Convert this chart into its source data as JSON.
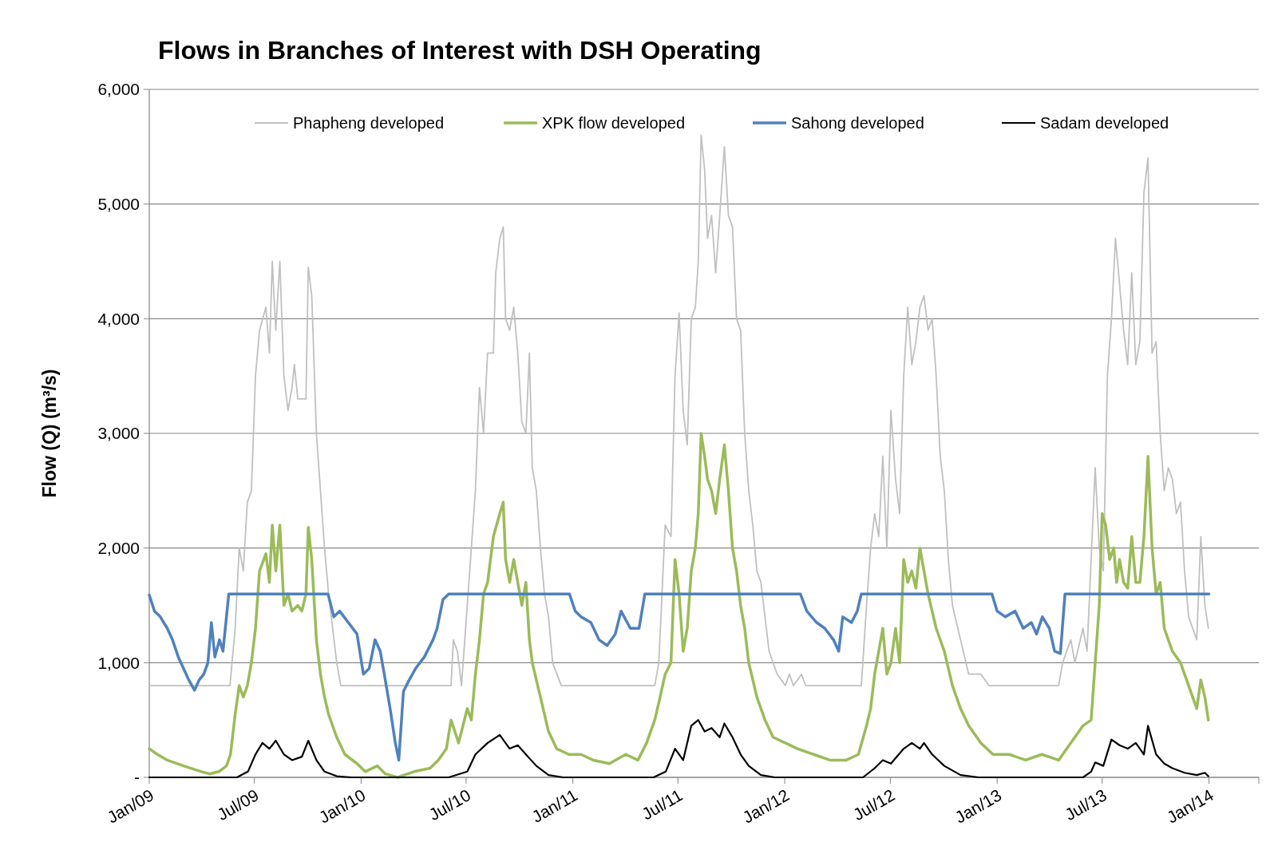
{
  "chart_data": {
    "type": "line",
    "title": "Flows in Branches of Interest with DSH Operating",
    "ylabel": "Flow (Q) (m³/s)",
    "xlim": [
      "2009-01-01",
      "2014-03-28"
    ],
    "xticks": [
      {
        "value": "2009-01-01",
        "label": "Jan/09"
      },
      {
        "value": "2009-07-01",
        "label": "Jul/09"
      },
      {
        "value": "2010-01-01",
        "label": "Jan/10"
      },
      {
        "value": "2010-07-01",
        "label": "Jul/10"
      },
      {
        "value": "2011-01-01",
        "label": "Jan/11"
      },
      {
        "value": "2011-07-01",
        "label": "Jul/11"
      },
      {
        "value": "2012-01-01",
        "label": "Jan/12"
      },
      {
        "value": "2012-07-01",
        "label": "Jul/12"
      },
      {
        "value": "2013-01-01",
        "label": "Jan/13"
      },
      {
        "value": "2013-07-01",
        "label": "Jul/13"
      },
      {
        "value": "2014-01-01",
        "label": "Jan/14"
      }
    ],
    "ylim": [
      0,
      6000
    ],
    "yticks": [
      {
        "value": 0,
        "label": "-"
      },
      {
        "value": 1000,
        "label": "1,000"
      },
      {
        "value": 2000,
        "label": "2,000"
      },
      {
        "value": 3000,
        "label": "3,000"
      },
      {
        "value": 4000,
        "label": "4,000"
      },
      {
        "value": 5000,
        "label": "5,000"
      },
      {
        "value": 6000,
        "label": "6,000"
      }
    ],
    "grid": "y",
    "legend": "top",
    "marker": "none",
    "line_style": "solid",
    "series": [
      {
        "name": "Phapheng developed",
        "color": "#c0c0c0",
        "x": [
          "2009-01-01",
          "2009-05-20",
          "2009-05-29",
          "2009-06-05",
          "2009-06-12",
          "2009-06-19",
          "2009-06-26",
          "2009-07-03",
          "2009-07-10",
          "2009-07-21",
          "2009-07-27",
          "2009-08-01",
          "2009-08-07",
          "2009-08-14",
          "2009-08-21",
          "2009-08-28",
          "2009-09-04",
          "2009-09-08",
          "2009-09-14",
          "2009-09-21",
          "2009-09-28",
          "2009-10-02",
          "2009-10-08",
          "2009-10-16",
          "2009-10-23",
          "2009-10-30",
          "2009-11-06",
          "2009-11-20",
          "2009-11-27",
          "2010-06-05",
          "2010-06-09",
          "2010-06-16",
          "2010-06-23",
          "2010-07-03",
          "2010-07-17",
          "2010-07-24",
          "2010-07-31",
          "2010-08-07",
          "2010-08-17",
          "2010-08-21",
          "2010-08-28",
          "2010-09-03",
          "2010-09-07",
          "2010-09-14",
          "2010-09-21",
          "2010-09-28",
          "2010-10-05",
          "2010-10-12",
          "2010-10-18",
          "2010-10-23",
          "2010-10-30",
          "2010-11-06",
          "2010-11-13",
          "2010-11-20",
          "2010-11-27",
          "2010-12-12",
          "2011-05-22",
          "2011-05-29",
          "2011-06-09",
          "2011-06-19",
          "2011-06-26",
          "2011-07-03",
          "2011-07-10",
          "2011-07-17",
          "2011-07-24",
          "2011-07-31",
          "2011-08-05",
          "2011-08-10",
          "2011-08-16",
          "2011-08-21",
          "2011-08-28",
          "2011-09-04",
          "2011-09-11",
          "2011-09-19",
          "2011-09-26",
          "2011-10-03",
          "2011-10-10",
          "2011-10-17",
          "2011-10-24",
          "2011-10-31",
          "2011-11-07",
          "2011-11-14",
          "2011-11-21",
          "2011-12-05",
          "2011-12-19",
          "2012-01-02",
          "2012-01-09",
          "2012-01-16",
          "2012-01-30",
          "2012-02-06",
          "2012-05-12",
          "2012-05-21",
          "2012-05-28",
          "2012-06-04",
          "2012-06-11",
          "2012-06-18",
          "2012-06-25",
          "2012-07-02",
          "2012-07-10",
          "2012-07-17",
          "2012-07-24",
          "2012-07-31",
          "2012-08-07",
          "2012-08-14",
          "2012-08-21",
          "2012-08-28",
          "2012-09-04",
          "2012-09-11",
          "2012-09-18",
          "2012-09-25",
          "2012-10-02",
          "2012-10-09",
          "2012-10-16",
          "2012-10-30",
          "2012-11-13",
          "2012-12-04",
          "2012-12-18",
          "2013-04-17",
          "2013-04-24",
          "2013-05-08",
          "2013-05-15",
          "2013-05-29",
          "2013-06-05",
          "2013-06-19",
          "2013-06-26",
          "2013-07-03",
          "2013-07-10",
          "2013-07-17",
          "2013-07-24",
          "2013-07-31",
          "2013-08-07",
          "2013-08-14",
          "2013-08-21",
          "2013-08-28",
          "2013-09-04",
          "2013-09-11",
          "2013-09-18",
          "2013-09-25",
          "2013-10-02",
          "2013-10-09",
          "2013-10-16",
          "2013-10-23",
          "2013-10-30",
          "2013-11-06",
          "2013-11-13",
          "2013-11-20",
          "2013-11-27",
          "2013-12-04",
          "2013-12-11",
          "2013-12-18",
          "2013-12-25",
          "2013-12-31"
        ],
        "values": [
          800,
          800,
          1300,
          2000,
          1800,
          2400,
          2500,
          3500,
          3900,
          4100,
          3700,
          4500,
          3900,
          4500,
          3500,
          3200,
          3400,
          3600,
          3300,
          3300,
          3300,
          4450,
          4200,
          3000,
          2500,
          2000,
          1600,
          1000,
          800,
          800,
          1200,
          1100,
          800,
          1500,
          2500,
          3400,
          3000,
          3700,
          3700,
          4400,
          4700,
          4800,
          4000,
          3900,
          4100,
          3700,
          3100,
          3000,
          3700,
          2700,
          2500,
          2000,
          1600,
          1400,
          1000,
          800,
          800,
          1000,
          2200,
          2100,
          3500,
          4050,
          3200,
          2900,
          4000,
          4100,
          4500,
          5600,
          5300,
          4700,
          4900,
          4400,
          4900,
          5500,
          4900,
          4800,
          4000,
          3900,
          3000,
          2500,
          2200,
          1800,
          1700,
          1100,
          900,
          800,
          900,
          800,
          900,
          800,
          800,
          1500,
          2000,
          2300,
          2100,
          2800,
          2000,
          3200,
          2600,
          2300,
          3500,
          4100,
          3600,
          3800,
          4100,
          4200,
          3900,
          4000,
          3500,
          2800,
          2500,
          1900,
          1500,
          1200,
          900,
          900,
          800,
          800,
          1000,
          1200,
          1000,
          1300,
          1100,
          2700,
          2000,
          1800,
          3500,
          4000,
          4700,
          4300,
          3900,
          3600,
          4400,
          3600,
          3800,
          5100,
          5400,
          3700,
          3800,
          3000,
          2500,
          2700,
          2600,
          2300,
          2400,
          1800,
          1400,
          1300,
          1200,
          2100,
          1500,
          1300
        ]
      },
      {
        "name": "XPK flow developed",
        "color": "#9bbb59",
        "x": [
          "2009-01-01",
          "2009-01-15",
          "2009-02-01",
          "2009-03-01",
          "2009-04-01",
          "2009-04-15",
          "2009-05-01",
          "2009-05-14",
          "2009-05-21",
          "2009-05-29",
          "2009-06-05",
          "2009-06-12",
          "2009-06-19",
          "2009-06-26",
          "2009-07-03",
          "2009-07-10",
          "2009-07-21",
          "2009-07-27",
          "2009-08-01",
          "2009-08-07",
          "2009-08-14",
          "2009-08-21",
          "2009-08-28",
          "2009-09-04",
          "2009-09-14",
          "2009-09-21",
          "2009-09-28",
          "2009-10-02",
          "2009-10-08",
          "2009-10-16",
          "2009-10-23",
          "2009-10-30",
          "2009-11-06",
          "2009-11-20",
          "2009-12-04",
          "2009-12-25",
          "2010-01-08",
          "2010-01-29",
          "2010-02-12",
          "2010-03-05",
          "2010-04-02",
          "2010-04-30",
          "2010-05-14",
          "2010-05-28",
          "2010-06-05",
          "2010-06-18",
          "2010-07-03",
          "2010-07-10",
          "2010-07-17",
          "2010-07-24",
          "2010-07-31",
          "2010-08-07",
          "2010-08-17",
          "2010-08-28",
          "2010-09-03",
          "2010-09-07",
          "2010-09-14",
          "2010-09-21",
          "2010-09-28",
          "2010-10-05",
          "2010-10-12",
          "2010-10-18",
          "2010-10-23",
          "2010-11-06",
          "2010-11-20",
          "2010-12-04",
          "2010-12-25",
          "2011-01-15",
          "2011-02-05",
          "2011-03-05",
          "2011-04-02",
          "2011-04-23",
          "2011-05-08",
          "2011-05-22",
          "2011-05-29",
          "2011-06-09",
          "2011-06-19",
          "2011-06-26",
          "2011-07-03",
          "2011-07-10",
          "2011-07-17",
          "2011-07-24",
          "2011-07-31",
          "2011-08-05",
          "2011-08-10",
          "2011-08-16",
          "2011-08-21",
          "2011-08-28",
          "2011-09-04",
          "2011-09-11",
          "2011-09-19",
          "2011-09-26",
          "2011-10-03",
          "2011-10-10",
          "2011-10-17",
          "2011-10-24",
          "2011-10-31",
          "2011-11-14",
          "2011-11-28",
          "2011-12-12",
          "2012-01-02",
          "2012-01-23",
          "2012-02-20",
          "2012-03-19",
          "2012-04-16",
          "2012-05-07",
          "2012-05-21",
          "2012-05-28",
          "2012-06-04",
          "2012-06-11",
          "2012-06-18",
          "2012-06-25",
          "2012-07-02",
          "2012-07-10",
          "2012-07-17",
          "2012-07-24",
          "2012-07-31",
          "2012-08-07",
          "2012-08-14",
          "2012-08-21",
          "2012-08-28",
          "2012-09-04",
          "2012-09-18",
          "2012-10-02",
          "2012-10-16",
          "2012-10-30",
          "2012-11-13",
          "2012-12-04",
          "2012-12-25",
          "2013-01-22",
          "2013-02-19",
          "2013-03-19",
          "2013-04-17",
          "2013-05-01",
          "2013-05-15",
          "2013-05-29",
          "2013-06-12",
          "2013-06-19",
          "2013-06-26",
          "2013-07-01",
          "2013-07-07",
          "2013-07-14",
          "2013-07-21",
          "2013-07-26",
          "2013-07-31",
          "2013-08-07",
          "2013-08-14",
          "2013-08-21",
          "2013-08-28",
          "2013-09-04",
          "2013-09-11",
          "2013-09-18",
          "2013-09-25",
          "2013-10-02",
          "2013-10-09",
          "2013-10-16",
          "2013-10-23",
          "2013-10-30",
          "2013-11-13",
          "2013-11-27",
          "2013-12-11",
          "2013-12-18",
          "2013-12-25",
          "2013-12-31"
        ],
        "values": [
          250,
          200,
          150,
          100,
          50,
          30,
          50,
          100,
          200,
          550,
          800,
          700,
          800,
          1000,
          1300,
          1800,
          1950,
          1700,
          2200,
          1800,
          2200,
          1500,
          1600,
          1450,
          1500,
          1450,
          1600,
          2180,
          1900,
          1200,
          900,
          700,
          550,
          350,
          200,
          120,
          50,
          100,
          30,
          0,
          50,
          80,
          150,
          250,
          500,
          300,
          600,
          500,
          900,
          1200,
          1600,
          1700,
          2100,
          2300,
          2400,
          1900,
          1700,
          1900,
          1700,
          1500,
          1700,
          1200,
          1000,
          700,
          400,
          250,
          200,
          200,
          150,
          120,
          200,
          150,
          300,
          500,
          650,
          900,
          1000,
          1900,
          1600,
          1100,
          1300,
          1800,
          2000,
          2300,
          3000,
          2800,
          2600,
          2500,
          2300,
          2600,
          2900,
          2500,
          2000,
          1800,
          1500,
          1300,
          1000,
          700,
          500,
          350,
          300,
          250,
          200,
          150,
          150,
          200,
          450,
          600,
          900,
          1100,
          1300,
          900,
          1000,
          1300,
          1000,
          1900,
          1700,
          1800,
          1650,
          2000,
          1800,
          1600,
          1300,
          1100,
          800,
          600,
          450,
          300,
          200,
          200,
          150,
          200,
          150,
          250,
          350,
          450,
          500,
          1000,
          1500,
          2300,
          2200,
          1900,
          2000,
          1700,
          1900,
          1700,
          1650,
          2100,
          1700,
          1700,
          2100,
          2800,
          2000,
          1600,
          1700,
          1300,
          1200,
          1100,
          1000,
          800,
          600,
          850,
          700,
          500
        ]
      },
      {
        "name": "Sahong developed",
        "color": "#4f81bd",
        "x": [
          "2009-01-01",
          "2009-01-10",
          "2009-01-20",
          "2009-02-01",
          "2009-02-10",
          "2009-02-20",
          "2009-03-01",
          "2009-03-10",
          "2009-03-20",
          "2009-03-28",
          "2009-04-05",
          "2009-04-12",
          "2009-04-18",
          "2009-04-24",
          "2009-05-02",
          "2009-05-08",
          "2009-05-18",
          "2009-11-05",
          "2009-11-15",
          "2009-11-25",
          "2009-12-10",
          "2009-12-25",
          "2010-01-05",
          "2010-01-15",
          "2010-01-25",
          "2010-02-03",
          "2010-02-10",
          "2010-02-20",
          "2010-03-01",
          "2010-03-07",
          "2010-03-15",
          "2010-03-25",
          "2010-04-05",
          "2010-04-20",
          "2010-05-05",
          "2010-05-12",
          "2010-05-22",
          "2010-06-01",
          "2010-12-26",
          "2011-01-05",
          "2011-01-15",
          "2011-02-01",
          "2011-02-15",
          "2011-03-01",
          "2011-03-15",
          "2011-03-25",
          "2011-04-10",
          "2011-04-25",
          "2011-05-05",
          "2012-01-28",
          "2012-02-08",
          "2012-02-25",
          "2012-03-10",
          "2012-03-25",
          "2012-04-03",
          "2012-04-10",
          "2012-04-25",
          "2012-05-05",
          "2012-05-12",
          "2012-12-23",
          "2013-01-01",
          "2013-01-15",
          "2013-02-01",
          "2013-02-15",
          "2013-03-01",
          "2013-03-10",
          "2013-03-20",
          "2013-04-01",
          "2013-04-10",
          "2013-04-20",
          "2013-04-28",
          "2014-01-01"
        ],
        "values": [
          1590,
          1450,
          1400,
          1300,
          1200,
          1050,
          950,
          850,
          760,
          850,
          900,
          1000,
          1350,
          1050,
          1200,
          1100,
          1600,
          1600,
          1400,
          1450,
          1350,
          1250,
          900,
          950,
          1200,
          1100,
          900,
          600,
          300,
          150,
          750,
          850,
          950,
          1050,
          1200,
          1300,
          1550,
          1600,
          1600,
          1450,
          1400,
          1350,
          1200,
          1150,
          1250,
          1450,
          1300,
          1300,
          1600,
          1600,
          1450,
          1350,
          1300,
          1200,
          1100,
          1400,
          1350,
          1450,
          1600,
          1600,
          1450,
          1400,
          1450,
          1300,
          1350,
          1250,
          1400,
          1300,
          1100,
          1080,
          1600,
          1600
        ]
      },
      {
        "name": "Sadam developed",
        "color": "#000000",
        "x": [
          "2009-01-01",
          "2009-06-01",
          "2009-06-20",
          "2009-07-03",
          "2009-07-15",
          "2009-07-27",
          "2009-08-07",
          "2009-08-21",
          "2009-09-04",
          "2009-09-21",
          "2009-10-02",
          "2009-10-16",
          "2009-10-30",
          "2009-11-20",
          "2009-12-15",
          "2010-06-01",
          "2010-07-03",
          "2010-07-17",
          "2010-08-07",
          "2010-08-28",
          "2010-09-14",
          "2010-09-28",
          "2010-10-12",
          "2010-10-30",
          "2010-11-20",
          "2010-12-15",
          "2011-05-20",
          "2011-06-10",
          "2011-06-26",
          "2011-07-10",
          "2011-07-24",
          "2011-08-05",
          "2011-08-16",
          "2011-08-28",
          "2011-09-11",
          "2011-09-19",
          "2011-10-03",
          "2011-10-17",
          "2011-10-31",
          "2011-11-21",
          "2011-12-15",
          "2012-05-15",
          "2012-06-04",
          "2012-06-18",
          "2012-07-02",
          "2012-07-24",
          "2012-08-07",
          "2012-08-21",
          "2012-08-28",
          "2012-09-11",
          "2012-10-02",
          "2012-10-30",
          "2012-11-30",
          "2013-05-29",
          "2013-06-12",
          "2013-06-19",
          "2013-07-03",
          "2013-07-17",
          "2013-07-31",
          "2013-08-14",
          "2013-08-28",
          "2013-09-11",
          "2013-09-18",
          "2013-10-02",
          "2013-10-16",
          "2013-10-30",
          "2013-11-20",
          "2013-12-11",
          "2013-12-25",
          "2013-12-31"
        ],
        "values": [
          0,
          0,
          50,
          200,
          300,
          250,
          320,
          200,
          150,
          180,
          320,
          150,
          50,
          10,
          0,
          0,
          50,
          200,
          300,
          370,
          250,
          280,
          200,
          100,
          20,
          0,
          0,
          50,
          250,
          150,
          450,
          500,
          400,
          430,
          350,
          470,
          350,
          200,
          100,
          20,
          0,
          0,
          80,
          150,
          120,
          250,
          300,
          250,
          300,
          200,
          100,
          20,
          0,
          0,
          50,
          130,
          100,
          330,
          280,
          250,
          300,
          200,
          450,
          200,
          120,
          80,
          40,
          20,
          40,
          10
        ]
      }
    ]
  }
}
